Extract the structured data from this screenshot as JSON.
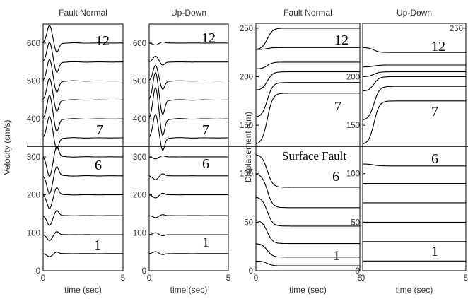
{
  "figure": {
    "fault_label": "Surface Fault",
    "station_labels": [
      "12",
      "7",
      "6",
      "1"
    ]
  },
  "chart_data": [
    {
      "type": "line",
      "title": "Fault Normal",
      "xlabel": "time (sec)",
      "ylabel": "Velocity (cm/s)",
      "xlim": [
        0,
        5
      ],
      "ylim": [
        0,
        650
      ],
      "x_ticks": [
        "0",
        "5"
      ],
      "y_ticks": [
        "0",
        "100",
        "200",
        "300",
        "400",
        "500",
        "600"
      ],
      "series_baselines": [
        45,
        95,
        145,
        200,
        250,
        300,
        350,
        400,
        450,
        500,
        550,
        600
      ],
      "peak_amplitudes": [
        -8,
        -15,
        -25,
        -35,
        -45,
        -50,
        55,
        60,
        55,
        55,
        50,
        45
      ]
    },
    {
      "type": "line",
      "title": "Up-Down",
      "xlabel": "time (sec)",
      "ylabel": "",
      "xlim": [
        0,
        5
      ],
      "ylim": [
        0,
        650
      ],
      "x_ticks": [
        "0",
        "5"
      ],
      "y_ticks": [
        "0",
        "100",
        "200",
        "300",
        "400",
        "500",
        "600"
      ],
      "series_baselines": [
        45,
        95,
        145,
        200,
        250,
        300,
        350,
        400,
        450,
        500,
        550,
        600
      ],
      "peak_amplitudes": [
        5,
        5,
        -5,
        -8,
        -10,
        -5,
        60,
        80,
        70,
        40,
        15,
        -5
      ]
    },
    {
      "type": "line",
      "title": "Fault Normal",
      "xlabel": "time (sec)",
      "ylabel": "Displacement (cm)",
      "xlim": [
        0,
        5
      ],
      "ylim": [
        0,
        255
      ],
      "x_ticks": [
        "0",
        "5"
      ],
      "y_ticks": [
        "0",
        "50",
        "100",
        "150",
        "200",
        "250"
      ],
      "series_start": [
        10,
        28,
        52,
        76,
        100,
        120,
        130,
        158,
        186,
        208,
        228,
        228
      ],
      "series_end": [
        5,
        14,
        28,
        46,
        65,
        86,
        183,
        194,
        205,
        215,
        230,
        250
      ]
    },
    {
      "type": "line",
      "title": "Up-Down",
      "xlabel": "time (sec)",
      "ylabel": "",
      "xlim": [
        0,
        5
      ],
      "ylim": [
        0,
        255
      ],
      "x_ticks": [
        "0",
        "5"
      ],
      "y_ticks": [
        "0",
        "50",
        "100",
        "150",
        "200"
      ],
      "extra_tick": "250",
      "series_start": [
        10,
        30,
        50,
        70,
        90,
        110,
        130,
        155,
        185,
        200,
        210,
        230
      ],
      "series_end": [
        10,
        30,
        50,
        70,
        90,
        108,
        175,
        190,
        200,
        205,
        212,
        225
      ]
    }
  ]
}
